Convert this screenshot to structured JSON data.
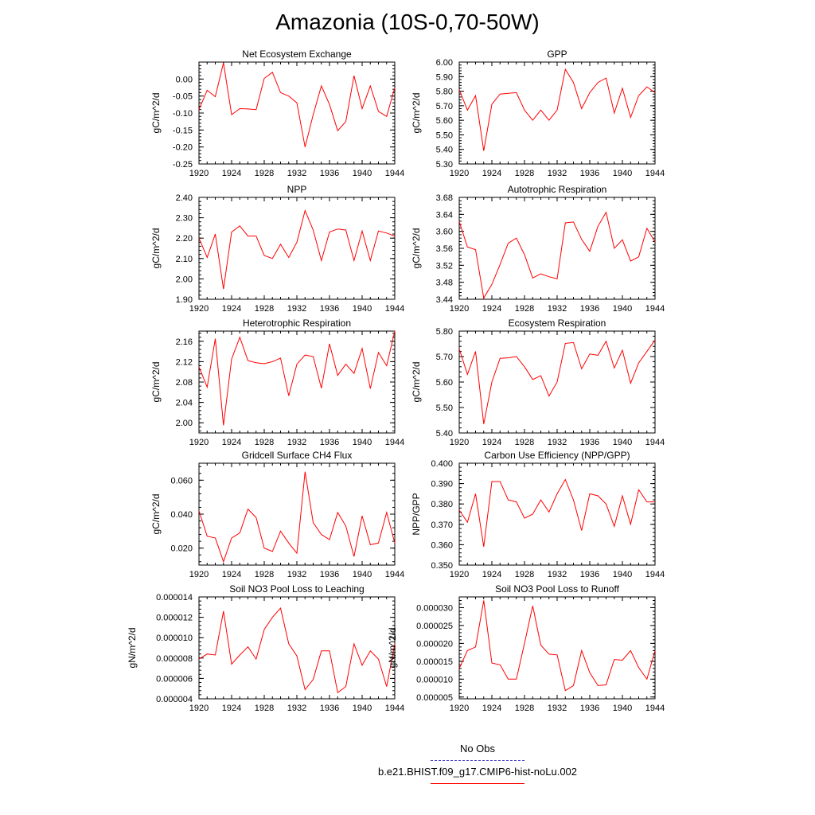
{
  "title": "Amazonia (10S-0,70-50W)",
  "legend": {
    "obs_label": "No Obs",
    "run_label": "b.e21.BHIST.f09_g17.CMIP6-hist-noLu.002",
    "obs_color": "#4444cc",
    "run_color": "#ff0000"
  },
  "chart_data": [
    {
      "type": "line",
      "title": "Net Ecosystem Exchange",
      "ylabel": "gC/m^2/d",
      "xlim": [
        1920,
        1944
      ],
      "ylim": [
        -0.25,
        0.05
      ],
      "xticks": [
        "1920",
        "1924",
        "1928",
        "1932",
        "1936",
        "1940",
        "1944"
      ],
      "yticks": [
        "0.00",
        "-0.05",
        "-0.10",
        "-0.15",
        "-0.20",
        "-0.25"
      ],
      "x": [
        1920,
        1921,
        1922,
        1923,
        1924,
        1925,
        1926,
        1927,
        1928,
        1929,
        1930,
        1931,
        1932,
        1933,
        1934,
        1935,
        1936,
        1937,
        1938,
        1939,
        1940,
        1941,
        1942,
        1943,
        1944
      ],
      "y": [
        -0.09,
        -0.033,
        -0.052,
        0.048,
        -0.105,
        -0.087,
        -0.088,
        -0.09,
        0.002,
        0.02,
        -0.04,
        -0.05,
        -0.07,
        -0.2,
        -0.105,
        -0.02,
        -0.075,
        -0.152,
        -0.125,
        0.01,
        -0.087,
        -0.02,
        -0.095,
        -0.11,
        -0.025
      ]
    },
    {
      "type": "line",
      "title": "GPP",
      "ylabel": "gC/m^2/d",
      "xlim": [
        1920,
        1944
      ],
      "ylim": [
        5.3,
        6.0
      ],
      "xticks": [
        "1920",
        "1924",
        "1928",
        "1932",
        "1936",
        "1940",
        "1944"
      ],
      "yticks": [
        "6.00",
        "5.90",
        "5.80",
        "5.70",
        "5.60",
        "5.50",
        "5.40",
        "5.30"
      ],
      "x": [
        1920,
        1921,
        1922,
        1923,
        1924,
        1925,
        1926,
        1927,
        1928,
        1929,
        1930,
        1931,
        1932,
        1933,
        1934,
        1935,
        1936,
        1937,
        1938,
        1939,
        1940,
        1941,
        1942,
        1943,
        1944
      ],
      "y": [
        5.81,
        5.67,
        5.77,
        5.39,
        5.71,
        5.78,
        5.785,
        5.79,
        5.67,
        5.6,
        5.67,
        5.6,
        5.67,
        5.95,
        5.86,
        5.68,
        5.79,
        5.86,
        5.89,
        5.65,
        5.82,
        5.62,
        5.77,
        5.83,
        5.79
      ]
    },
    {
      "type": "line",
      "title": "NPP",
      "ylabel": "gC/m^2/d",
      "xlim": [
        1920,
        1944
      ],
      "ylim": [
        1.9,
        2.4
      ],
      "xticks": [
        "1920",
        "1924",
        "1928",
        "1932",
        "1936",
        "1940",
        "1944"
      ],
      "yticks": [
        "2.40",
        "2.30",
        "2.20",
        "2.10",
        "2.00",
        "1.90"
      ],
      "x": [
        1920,
        1921,
        1922,
        1923,
        1924,
        1925,
        1926,
        1927,
        1928,
        1929,
        1930,
        1931,
        1932,
        1933,
        1934,
        1935,
        1936,
        1937,
        1938,
        1939,
        1940,
        1941,
        1942,
        1943,
        1944
      ],
      "y": [
        2.2,
        2.105,
        2.22,
        1.95,
        2.23,
        2.26,
        2.21,
        2.21,
        2.115,
        2.1,
        2.17,
        2.105,
        2.18,
        2.335,
        2.24,
        2.09,
        2.23,
        2.245,
        2.24,
        2.09,
        2.235,
        2.09,
        2.235,
        2.225,
        2.21
      ]
    },
    {
      "type": "line",
      "title": "Autotrophic Respiration",
      "ylabel": "gC/m^2/d",
      "xlim": [
        1920,
        1944
      ],
      "ylim": [
        3.44,
        3.68
      ],
      "xticks": [
        "1920",
        "1924",
        "1928",
        "1932",
        "1936",
        "1940",
        "1944"
      ],
      "yticks": [
        "3.68",
        "3.64",
        "3.60",
        "3.56",
        "3.52",
        "3.48",
        "3.44"
      ],
      "x": [
        1920,
        1921,
        1922,
        1923,
        1924,
        1925,
        1926,
        1927,
        1928,
        1929,
        1930,
        1931,
        1932,
        1933,
        1934,
        1935,
        1936,
        1937,
        1938,
        1939,
        1940,
        1941,
        1942,
        1943,
        1944
      ],
      "y": [
        3.623,
        3.563,
        3.557,
        3.443,
        3.475,
        3.522,
        3.572,
        3.584,
        3.545,
        3.49,
        3.5,
        3.493,
        3.488,
        3.62,
        3.622,
        3.581,
        3.553,
        3.612,
        3.645,
        3.56,
        3.58,
        3.53,
        3.54,
        3.607,
        3.575
      ]
    },
    {
      "type": "line",
      "title": "Heterotrophic Respiration",
      "ylabel": "gC/m^2/d",
      "xlim": [
        1920,
        1944
      ],
      "ylim": [
        1.98,
        2.18
      ],
      "xticks": [
        "1920",
        "1924",
        "1928",
        "1932",
        "1936",
        "1940",
        "1944"
      ],
      "yticks": [
        "2.16",
        "2.12",
        "2.08",
        "2.04",
        "2.00"
      ],
      "x": [
        1920,
        1921,
        1922,
        1923,
        1924,
        1925,
        1926,
        1927,
        1928,
        1929,
        1930,
        1931,
        1932,
        1933,
        1934,
        1935,
        1936,
        1937,
        1938,
        1939,
        1940,
        1941,
        1942,
        1943,
        1944
      ],
      "y": [
        2.11,
        2.07,
        2.165,
        1.995,
        2.125,
        2.168,
        2.122,
        2.118,
        2.116,
        2.12,
        2.127,
        2.053,
        2.115,
        2.133,
        2.13,
        2.068,
        2.155,
        2.093,
        2.115,
        2.097,
        2.146,
        2.067,
        2.138,
        2.112,
        2.18
      ]
    },
    {
      "type": "line",
      "title": "Ecosystem Respiration",
      "ylabel": "gC/m^2/d",
      "xlim": [
        1920,
        1944
      ],
      "ylim": [
        5.4,
        5.8
      ],
      "xticks": [
        "1920",
        "1924",
        "1928",
        "1932",
        "1936",
        "1940",
        "1944"
      ],
      "yticks": [
        "5.80",
        "5.70",
        "5.60",
        "5.50",
        "5.40"
      ],
      "x": [
        1920,
        1921,
        1922,
        1923,
        1924,
        1925,
        1926,
        1927,
        1928,
        1929,
        1930,
        1931,
        1932,
        1933,
        1934,
        1935,
        1936,
        1937,
        1938,
        1939,
        1940,
        1941,
        1942,
        1943,
        1944
      ],
      "y": [
        5.73,
        5.63,
        5.72,
        5.435,
        5.6,
        5.693,
        5.695,
        5.7,
        5.66,
        5.61,
        5.625,
        5.545,
        5.6,
        5.752,
        5.755,
        5.652,
        5.71,
        5.705,
        5.76,
        5.655,
        5.725,
        5.595,
        5.675,
        5.72,
        5.765
      ]
    },
    {
      "type": "line",
      "title": "Gridcell Surface CH4 Flux",
      "ylabel": "gC/m^2/d",
      "xlim": [
        1920,
        1944
      ],
      "ylim": [
        0.01,
        0.07
      ],
      "xticks": [
        "1920",
        "1924",
        "1928",
        "1932",
        "1936",
        "1940",
        "1944"
      ],
      "yticks": [
        "0.060",
        "0.040",
        "0.020"
      ],
      "x": [
        1920,
        1921,
        1922,
        1923,
        1924,
        1925,
        1926,
        1927,
        1928,
        1929,
        1930,
        1931,
        1932,
        1933,
        1934,
        1935,
        1936,
        1937,
        1938,
        1939,
        1940,
        1941,
        1942,
        1943,
        1944
      ],
      "y": [
        0.042,
        0.027,
        0.026,
        0.012,
        0.026,
        0.029,
        0.043,
        0.038,
        0.02,
        0.018,
        0.03,
        0.023,
        0.017,
        0.065,
        0.035,
        0.028,
        0.025,
        0.041,
        0.033,
        0.015,
        0.039,
        0.022,
        0.023,
        0.041,
        0.023
      ]
    },
    {
      "type": "line",
      "title": "Carbon Use Efficiency (NPP/GPP)",
      "ylabel": "NPP/GPP",
      "xlim": [
        1920,
        1944
      ],
      "ylim": [
        0.35,
        0.4
      ],
      "xticks": [
        "1920",
        "1924",
        "1928",
        "1932",
        "1936",
        "1940",
        "1944"
      ],
      "yticks": [
        "0.400",
        "0.390",
        "0.380",
        "0.370",
        "0.360",
        "0.350"
      ],
      "x": [
        1920,
        1921,
        1922,
        1923,
        1924,
        1925,
        1926,
        1927,
        1928,
        1929,
        1930,
        1931,
        1932,
        1933,
        1934,
        1935,
        1936,
        1937,
        1938,
        1939,
        1940,
        1941,
        1942,
        1943,
        1944
      ],
      "y": [
        0.377,
        0.371,
        0.385,
        0.359,
        0.391,
        0.391,
        0.382,
        0.381,
        0.373,
        0.375,
        0.382,
        0.376,
        0.385,
        0.392,
        0.382,
        0.367,
        0.385,
        0.384,
        0.38,
        0.369,
        0.384,
        0.37,
        0.387,
        0.381,
        0.381
      ]
    },
    {
      "type": "line",
      "title": "Soil NO3 Pool Loss to Leaching",
      "ylabel": "gN/m^2/d",
      "xlim": [
        1920,
        1944
      ],
      "ylim": [
        4e-06,
        1.4e-05
      ],
      "xticks": [
        "1920",
        "1924",
        "1928",
        "1932",
        "1936",
        "1940",
        "1944"
      ],
      "yticks": [
        "0.000014",
        "0.000012",
        "0.000010",
        "0.000008",
        "0.000006",
        "0.000004"
      ],
      "x": [
        1920,
        1921,
        1922,
        1923,
        1924,
        1925,
        1926,
        1927,
        1928,
        1929,
        1930,
        1931,
        1932,
        1933,
        1934,
        1935,
        1936,
        1937,
        1938,
        1939,
        1940,
        1941,
        1942,
        1943,
        1944
      ],
      "y": [
        7.9e-06,
        8.4e-06,
        8.3e-06,
        1.26e-05,
        7.4e-06,
        8.3e-06,
        9.1e-06,
        7.9e-06,
        1.08e-05,
        1.2e-05,
        1.29e-05,
        9.4e-06,
        8.2e-06,
        4.9e-06,
        5.9e-06,
        8.7e-06,
        8.7e-06,
        4.6e-06,
        5.2e-06,
        9.4e-06,
        7.3e-06,
        8.7e-06,
        7.9e-06,
        5.2e-06,
        9.4e-06
      ]
    },
    {
      "type": "line",
      "title": "Soil NO3 Pool Loss to Runoff",
      "ylabel": "gN/m^2/d",
      "xlim": [
        1920,
        1944
      ],
      "ylim": [
        4.5e-06,
        3.3e-05
      ],
      "xticks": [
        "1920",
        "1924",
        "1928",
        "1932",
        "1936",
        "1940",
        "1944"
      ],
      "yticks": [
        "0.000030",
        "0.000025",
        "0.000020",
        "0.000015",
        "0.000010",
        "0.000005"
      ],
      "x": [
        1920,
        1921,
        1922,
        1923,
        1924,
        1925,
        1926,
        1927,
        1928,
        1929,
        1930,
        1931,
        1932,
        1933,
        1934,
        1935,
        1936,
        1937,
        1938,
        1939,
        1940,
        1941,
        1942,
        1943,
        1944
      ],
      "y": [
        1.3e-05,
        1.8e-05,
        1.9e-05,
        3.2e-05,
        1.45e-05,
        1.4e-05,
        1e-05,
        1e-05,
        2e-05,
        3.05e-05,
        1.95e-05,
        1.7e-05,
        1.68e-05,
        6.8e-06,
        8.2e-06,
        1.8e-05,
        1.18e-05,
        8.2e-06,
        8.4e-06,
        1.55e-05,
        1.53e-05,
        1.8e-05,
        1.32e-05,
        1e-05,
        1.8e-05
      ]
    }
  ]
}
